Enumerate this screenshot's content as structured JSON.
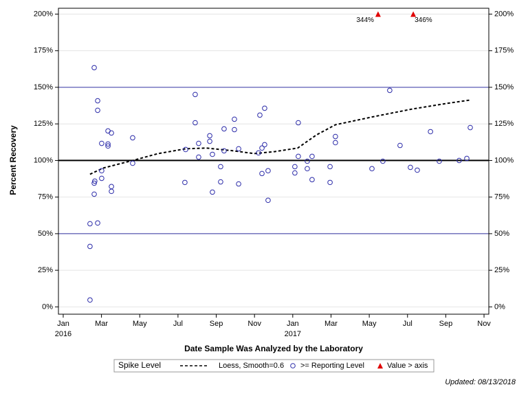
{
  "chart_data": {
    "type": "scatter",
    "x_label": "Date Sample Was Analyzed by the Laboratory",
    "y_label": "Percent Recovery",
    "legend_title": "Spike Level",
    "footnote": "Updated: 08/13/2018",
    "xlim": [
      -0.25,
      22.25
    ],
    "xticks": [
      {
        "value": 0,
        "label": "Jan\n2016"
      },
      {
        "value": 2,
        "label": "Mar"
      },
      {
        "value": 4,
        "label": "May"
      },
      {
        "value": 6,
        "label": "Jul"
      },
      {
        "value": 8,
        "label": "Sep"
      },
      {
        "value": 10,
        "label": "Nov"
      },
      {
        "value": 12,
        "label": "Jan\n2017"
      },
      {
        "value": 14,
        "label": "Mar"
      },
      {
        "value": 16,
        "label": "May"
      },
      {
        "value": 18,
        "label": "Jul"
      },
      {
        "value": 20,
        "label": "Sep"
      },
      {
        "value": 22,
        "label": "Nov"
      }
    ],
    "ylim": [
      -5,
      204
    ],
    "yticks": [
      {
        "value": 0,
        "label": "0%"
      },
      {
        "value": 25,
        "label": "25%"
      },
      {
        "value": 50,
        "label": "50%"
      },
      {
        "value": 75,
        "label": "75%"
      },
      {
        "value": 100,
        "label": "100%"
      },
      {
        "value": 125,
        "label": "125%"
      },
      {
        "value": 150,
        "label": "150%"
      },
      {
        "value": 175,
        "label": "175%"
      },
      {
        "value": 200,
        "label": "200%"
      }
    ],
    "grid": true,
    "reference_lines": [
      {
        "value": 50,
        "color": "#3030a0"
      },
      {
        "value": 100,
        "color": "#000000"
      },
      {
        "value": 150,
        "color": "#3030a0"
      }
    ],
    "series": [
      {
        "name": "Loess, Smooth=0.6",
        "mark": "line",
        "color": "#000000",
        "x": [
          1.4,
          2.08,
          3.63,
          4.96,
          6.4,
          7.48,
          8.91,
          9.99,
          11.07,
          12.26,
          13.23,
          14.23,
          16.1,
          18.26,
          20.06,
          21.28
        ],
        "values": [
          90.6,
          94.8,
          100,
          104.7,
          108,
          108.5,
          106.6,
          104.7,
          106.1,
          108.5,
          117.4,
          124.4,
          129.6,
          135.2,
          139,
          141.3
        ]
      },
      {
        "name": ">= Reporting Level",
        "mark": "circle",
        "color": "#2a2aa8",
        "x": [
          1.4,
          1.4,
          1.4,
          1.8,
          1.62,
          1.62,
          1.65,
          2.01,
          2.01,
          2.52,
          2.52,
          2.34,
          2.34,
          2.01,
          2.34,
          2.52,
          1.8,
          1.8,
          1.62,
          3.63,
          3.63,
          6.36,
          6.4,
          6.9,
          6.9,
          7.08,
          7.08,
          7.66,
          7.66,
          7.8,
          7.8,
          8.23,
          8.23,
          8.41,
          8.41,
          8.95,
          8.95,
          9.17,
          9.17,
          10.21,
          10.28,
          10.39,
          10.53,
          10.53,
          10.39,
          10.71,
          10.71,
          12.11,
          12.11,
          12.29,
          12.29,
          12.76,
          12.76,
          13.01,
          13.01,
          13.95,
          13.95,
          14.23,
          14.23,
          16.14,
          16.71,
          17.07,
          17.61,
          18.15,
          18.51,
          19.2,
          19.66,
          20.7,
          21.1,
          21.28
        ],
        "values": [
          4.7,
          41.3,
          56.8,
          57.3,
          77,
          84.5,
          85.9,
          87.8,
          93,
          82.2,
          78.9,
          109.9,
          111.3,
          111.7,
          120.2,
          118.8,
          134.3,
          140.8,
          163.4,
          98.1,
          115.5,
          85,
          107.5,
          125.8,
          145.1,
          111.7,
          102.3,
          113.1,
          116.9,
          104.2,
          78.4,
          95.8,
          85.4,
          106.6,
          121.6,
          121.1,
          128.2,
          108,
          84,
          105.2,
          131,
          108.5,
          110.8,
          135.7,
          91.1,
          93,
          72.8,
          95.8,
          91.5,
          125.8,
          102.8,
          99.5,
          94.4,
          102.8,
          86.9,
          95.8,
          85,
          116.4,
          112.2,
          94.4,
          99.5,
          147.9,
          110.3,
          95.3,
          93.4,
          119.7,
          99.5,
          100,
          101.4,
          122.5
        ]
      },
      {
        "name": "Value > axis",
        "mark": "triangle",
        "color": "#e00000",
        "x": [
          16.46,
          18.3
        ],
        "values": [
          344,
          346
        ],
        "value_labels": [
          "344%",
          "346%"
        ]
      }
    ]
  }
}
